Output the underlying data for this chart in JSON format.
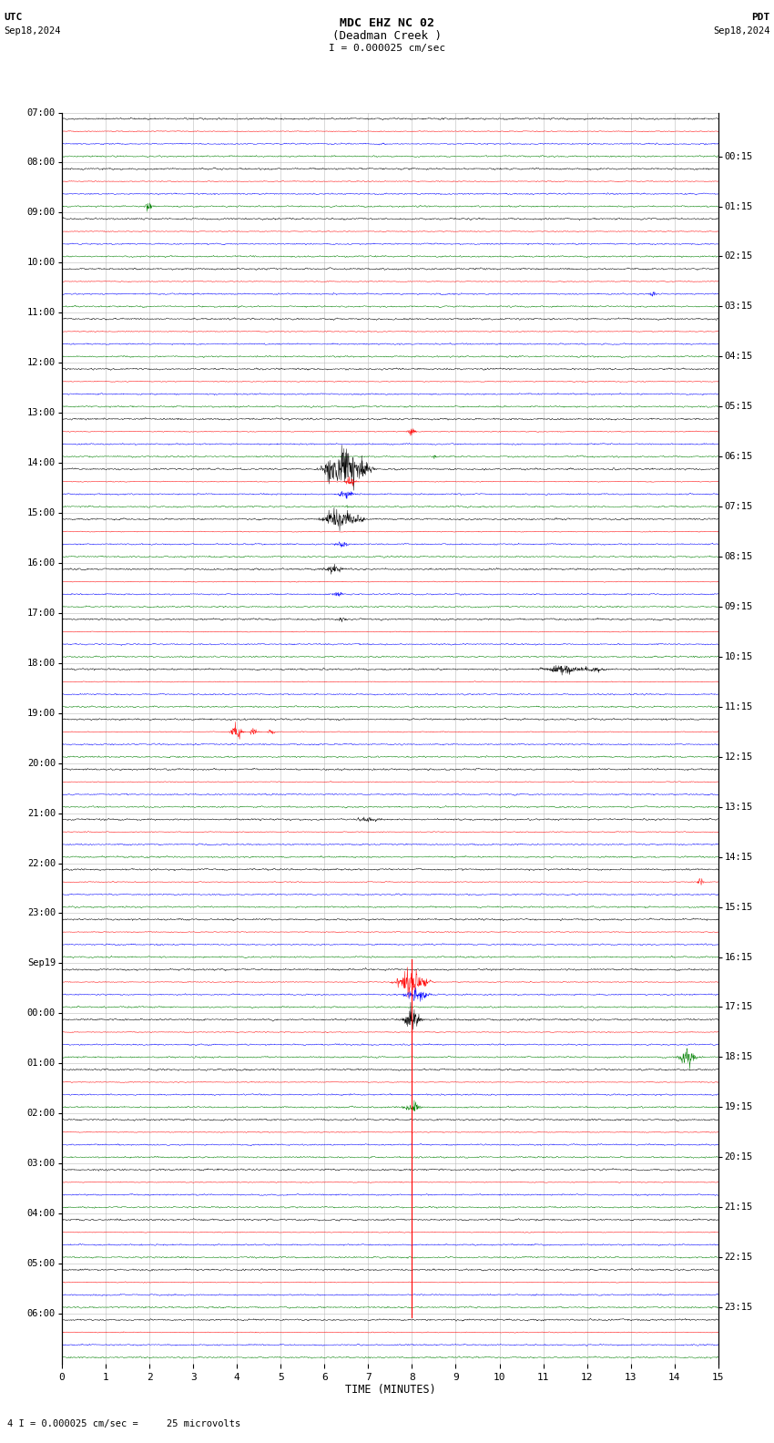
{
  "title_line1": "MDC EHZ NC 02",
  "title_line2": "(Deadman Creek )",
  "scale_label": "I = 0.000025 cm/sec",
  "utc_label": "UTC",
  "pdt_label": "PDT",
  "date_left": "Sep18,2024",
  "date_right": "Sep18,2024",
  "bottom_note": "4 I = 0.000025 cm/sec =     25 microvolts",
  "xlabel": "TIME (MINUTES)",
  "bg_color": "#ffffff",
  "trace_colors": [
    "black",
    "red",
    "blue",
    "green"
  ],
  "left_times": [
    "07:00",
    "08:00",
    "09:00",
    "10:00",
    "11:00",
    "12:00",
    "13:00",
    "14:00",
    "15:00",
    "16:00",
    "17:00",
    "18:00",
    "19:00",
    "20:00",
    "21:00",
    "22:00",
    "23:00",
    "Sep19",
    "00:00",
    "01:00",
    "02:00",
    "03:00",
    "04:00",
    "05:00",
    "06:00"
  ],
  "right_times": [
    "00:15",
    "01:15",
    "02:15",
    "03:15",
    "04:15",
    "05:15",
    "06:15",
    "07:15",
    "08:15",
    "09:15",
    "10:15",
    "11:15",
    "12:15",
    "13:15",
    "14:15",
    "15:15",
    "16:15",
    "17:15",
    "18:15",
    "19:15",
    "20:15",
    "21:15",
    "22:15",
    "23:15"
  ],
  "num_rows": 25,
  "traces_per_row": 4,
  "noise_amp": 0.025,
  "seed": 42,
  "fig_width": 8.5,
  "fig_height": 15.84,
  "dpi": 100
}
